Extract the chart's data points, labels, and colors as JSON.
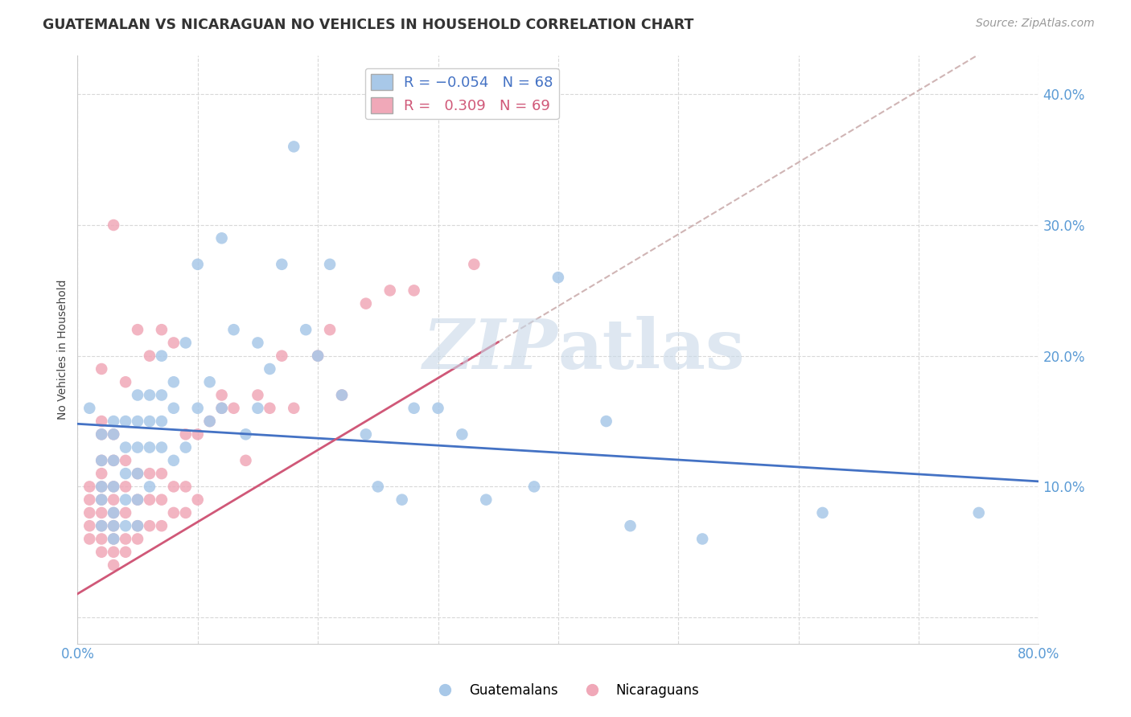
{
  "title": "GUATEMALAN VS NICARAGUAN NO VEHICLES IN HOUSEHOLD CORRELATION CHART",
  "source": "Source: ZipAtlas.com",
  "ylabel": "No Vehicles in Household",
  "xlim": [
    0.0,
    0.8
  ],
  "ylim": [
    -0.02,
    0.43
  ],
  "x_ticks": [
    0.0,
    0.1,
    0.2,
    0.3,
    0.4,
    0.5,
    0.6,
    0.7,
    0.8
  ],
  "y_ticks": [
    0.0,
    0.1,
    0.2,
    0.3,
    0.4
  ],
  "guatemalan_R": -0.054,
  "guatemalan_N": 68,
  "nicaraguan_R": 0.309,
  "nicaraguan_N": 69,
  "blue_color": "#a8c8e8",
  "pink_color": "#f0a8b8",
  "blue_line_color": "#4472c4",
  "pink_line_color": "#d05878",
  "dash_color": "#c8a8a8",
  "grid_color": "#d8d8d8",
  "watermark_color": "#c8d8e8",
  "guatemalan_x": [
    0.01,
    0.02,
    0.02,
    0.02,
    0.02,
    0.02,
    0.03,
    0.03,
    0.03,
    0.03,
    0.03,
    0.03,
    0.03,
    0.04,
    0.04,
    0.04,
    0.04,
    0.04,
    0.05,
    0.05,
    0.05,
    0.05,
    0.05,
    0.05,
    0.06,
    0.06,
    0.06,
    0.06,
    0.07,
    0.07,
    0.07,
    0.07,
    0.08,
    0.08,
    0.08,
    0.09,
    0.09,
    0.1,
    0.1,
    0.11,
    0.11,
    0.12,
    0.12,
    0.13,
    0.14,
    0.15,
    0.15,
    0.16,
    0.17,
    0.18,
    0.19,
    0.2,
    0.21,
    0.22,
    0.24,
    0.25,
    0.27,
    0.28,
    0.3,
    0.32,
    0.34,
    0.38,
    0.4,
    0.44,
    0.46,
    0.52,
    0.62,
    0.75
  ],
  "guatemalan_y": [
    0.16,
    0.14,
    0.12,
    0.1,
    0.09,
    0.07,
    0.15,
    0.14,
    0.12,
    0.1,
    0.08,
    0.07,
    0.06,
    0.15,
    0.13,
    0.11,
    0.09,
    0.07,
    0.17,
    0.15,
    0.13,
    0.11,
    0.09,
    0.07,
    0.17,
    0.15,
    0.13,
    0.1,
    0.2,
    0.17,
    0.15,
    0.13,
    0.18,
    0.16,
    0.12,
    0.21,
    0.13,
    0.27,
    0.16,
    0.18,
    0.15,
    0.29,
    0.16,
    0.22,
    0.14,
    0.21,
    0.16,
    0.19,
    0.27,
    0.36,
    0.22,
    0.2,
    0.27,
    0.17,
    0.14,
    0.1,
    0.09,
    0.16,
    0.16,
    0.14,
    0.09,
    0.1,
    0.26,
    0.15,
    0.07,
    0.06,
    0.08,
    0.08
  ],
  "nicaraguan_x": [
    0.01,
    0.01,
    0.01,
    0.01,
    0.01,
    0.02,
    0.02,
    0.02,
    0.02,
    0.02,
    0.02,
    0.02,
    0.02,
    0.02,
    0.02,
    0.02,
    0.03,
    0.03,
    0.03,
    0.03,
    0.03,
    0.03,
    0.03,
    0.03,
    0.03,
    0.03,
    0.04,
    0.04,
    0.04,
    0.04,
    0.04,
    0.04,
    0.05,
    0.05,
    0.05,
    0.05,
    0.05,
    0.06,
    0.06,
    0.06,
    0.06,
    0.07,
    0.07,
    0.07,
    0.07,
    0.08,
    0.08,
    0.08,
    0.09,
    0.09,
    0.09,
    0.1,
    0.1,
    0.11,
    0.12,
    0.12,
    0.13,
    0.14,
    0.15,
    0.16,
    0.17,
    0.18,
    0.2,
    0.21,
    0.22,
    0.24,
    0.26,
    0.28,
    0.33
  ],
  "nicaraguan_y": [
    0.06,
    0.07,
    0.08,
    0.09,
    0.1,
    0.05,
    0.06,
    0.07,
    0.08,
    0.09,
    0.1,
    0.11,
    0.12,
    0.14,
    0.15,
    0.19,
    0.04,
    0.05,
    0.06,
    0.07,
    0.08,
    0.09,
    0.1,
    0.12,
    0.14,
    0.3,
    0.05,
    0.06,
    0.08,
    0.1,
    0.12,
    0.18,
    0.06,
    0.07,
    0.09,
    0.11,
    0.22,
    0.07,
    0.09,
    0.11,
    0.2,
    0.07,
    0.09,
    0.11,
    0.22,
    0.08,
    0.1,
    0.21,
    0.08,
    0.1,
    0.14,
    0.09,
    0.14,
    0.15,
    0.16,
    0.17,
    0.16,
    0.12,
    0.17,
    0.16,
    0.2,
    0.16,
    0.2,
    0.22,
    0.17,
    0.24,
    0.25,
    0.25,
    0.27
  ]
}
